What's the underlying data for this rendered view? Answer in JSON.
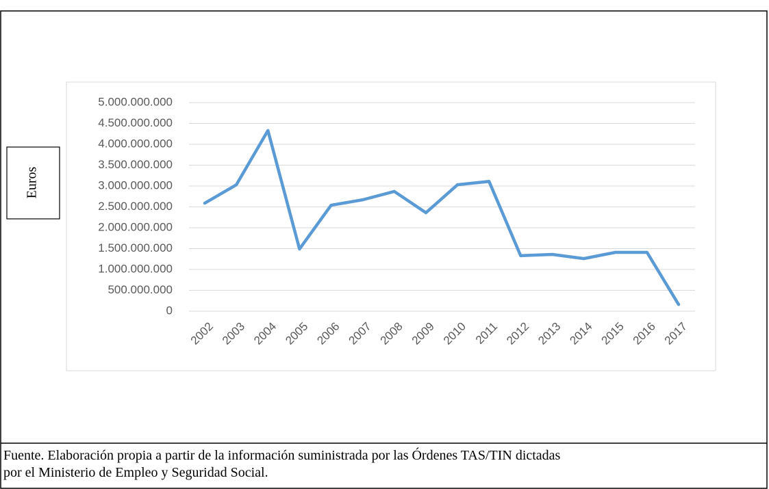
{
  "chart_data": {
    "type": "line",
    "y_label": "Euros",
    "categories": [
      "2002",
      "2003",
      "2004",
      "2005",
      "2006",
      "2007",
      "2008",
      "2009",
      "2010",
      "2011",
      "2012",
      "2013",
      "2014",
      "2015",
      "2016",
      "2017"
    ],
    "series": [
      {
        "color": "#5b9bd5",
        "values": [
          2590000000,
          3030000000,
          4330000000,
          1490000000,
          2540000000,
          2670000000,
          2870000000,
          2360000000,
          3030000000,
          3110000000,
          1330000000,
          1360000000,
          1260000000,
          1410000000,
          1410000000,
          160000000
        ]
      }
    ],
    "ylim": [
      0,
      5000000000
    ],
    "yticks": [
      0,
      {
        "value": 500000000,
        "label": "500.000.000"
      },
      {
        "value": 1000000000,
        "label": "1.000.000.000"
      },
      {
        "value": 1500000000,
        "label": "1.500.000.000"
      },
      {
        "value": 2000000000,
        "label": "2.000.000.000"
      },
      {
        "value": 2500000000,
        "label": "2.500.000.000"
      },
      {
        "value": 3000000000,
        "label": "3.000.000.000"
      },
      {
        "value": 3500000000,
        "label": "3.500.000.000"
      },
      {
        "value": 4000000000,
        "label": "4.000.000.000"
      },
      {
        "value": 4500000000,
        "label": "4.500.000.000"
      },
      {
        "value": 5000000000,
        "label": "5.000.000.000"
      }
    ],
    "grid": true
  },
  "caption": [
    "Fuente. Elaboración propia a partir de la información suministrada por las Órdenes TAS/TIN dictadas",
    "por el Ministerio de Empleo y Seguridad Social."
  ]
}
